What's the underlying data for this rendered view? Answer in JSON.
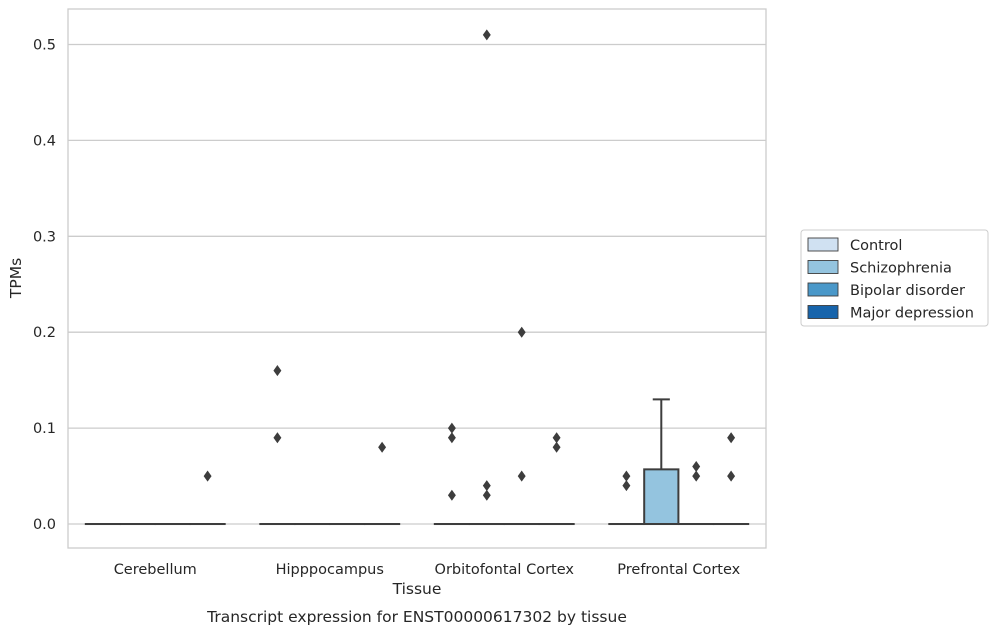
{
  "chart_data": {
    "type": "box",
    "caption": "Transcript expression for ENST00000617302 by tissue",
    "xlabel": "Tissue",
    "ylabel": "TPMs",
    "ylim": [
      -0.025,
      0.537
    ],
    "yticks": [
      "0.0",
      "0.1",
      "0.2",
      "0.3",
      "0.4",
      "0.5"
    ],
    "ytick_values": [
      0.0,
      0.1,
      0.2,
      0.3,
      0.4,
      0.5
    ],
    "categories": [
      "Cerebellum",
      "Hipppocampus",
      "Orbitofontal Cortex",
      "Prefrontal Cortex"
    ],
    "grid": "horizontal",
    "legend_position": "outside right",
    "series": [
      {
        "name": "Control",
        "color": "#d0e1f2",
        "boxes": [
          {
            "category": "Cerebellum",
            "q1": 0.0,
            "median": 0.0,
            "q3": 0.0,
            "whisker_low": 0.0,
            "whisker_high": 0.0,
            "outliers": []
          },
          {
            "category": "Hipppocampus",
            "q1": 0.0,
            "median": 0.0,
            "q3": 0.0,
            "whisker_low": 0.0,
            "whisker_high": 0.0,
            "outliers": [
              0.16,
              0.09
            ]
          },
          {
            "category": "Orbitofontal Cortex",
            "q1": 0.0,
            "median": 0.0,
            "q3": 0.0,
            "whisker_low": 0.0,
            "whisker_high": 0.0,
            "outliers": [
              0.1,
              0.09,
              0.03
            ]
          },
          {
            "category": "Prefrontal Cortex",
            "q1": 0.0,
            "median": 0.0,
            "q3": 0.0,
            "whisker_low": 0.0,
            "whisker_high": 0.0,
            "outliers": [
              0.05,
              0.04
            ]
          }
        ]
      },
      {
        "name": "Schizophrenia",
        "color": "#94c4df",
        "boxes": [
          {
            "category": "Cerebellum",
            "q1": 0.0,
            "median": 0.0,
            "q3": 0.0,
            "whisker_low": 0.0,
            "whisker_high": 0.0,
            "outliers": []
          },
          {
            "category": "Hipppocampus",
            "q1": 0.0,
            "median": 0.0,
            "q3": 0.0,
            "whisker_low": 0.0,
            "whisker_high": 0.0,
            "outliers": []
          },
          {
            "category": "Orbitofontal Cortex",
            "q1": 0.0,
            "median": 0.0,
            "q3": 0.0,
            "whisker_low": 0.0,
            "whisker_high": 0.0,
            "outliers": [
              0.51,
              0.04,
              0.03
            ]
          },
          {
            "category": "Prefrontal Cortex",
            "q1": 0.0,
            "median": 0.0,
            "q3": 0.057,
            "whisker_low": 0.0,
            "whisker_high": 0.13,
            "outliers": []
          }
        ]
      },
      {
        "name": "Bipolar disorder",
        "color": "#4a98c9",
        "boxes": [
          {
            "category": "Cerebellum",
            "q1": 0.0,
            "median": 0.0,
            "q3": 0.0,
            "whisker_low": 0.0,
            "whisker_high": 0.0,
            "outliers": []
          },
          {
            "category": "Hipppocampus",
            "q1": 0.0,
            "median": 0.0,
            "q3": 0.0,
            "whisker_low": 0.0,
            "whisker_high": 0.0,
            "outliers": []
          },
          {
            "category": "Orbitofontal Cortex",
            "q1": 0.0,
            "median": 0.0,
            "q3": 0.0,
            "whisker_low": 0.0,
            "whisker_high": 0.0,
            "outliers": [
              0.2,
              0.05
            ]
          },
          {
            "category": "Prefrontal Cortex",
            "q1": 0.0,
            "median": 0.0,
            "q3": 0.0,
            "whisker_low": 0.0,
            "whisker_high": 0.0,
            "outliers": [
              0.06,
              0.05
            ]
          }
        ]
      },
      {
        "name": "Major depression",
        "color": "#1764ab",
        "boxes": [
          {
            "category": "Cerebellum",
            "q1": 0.0,
            "median": 0.0,
            "q3": 0.0,
            "whisker_low": 0.0,
            "whisker_high": 0.0,
            "outliers": [
              0.05
            ]
          },
          {
            "category": "Hipppocampus",
            "q1": 0.0,
            "median": 0.0,
            "q3": 0.0,
            "whisker_low": 0.0,
            "whisker_high": 0.0,
            "outliers": [
              0.08
            ]
          },
          {
            "category": "Orbitofontal Cortex",
            "q1": 0.0,
            "median": 0.0,
            "q3": 0.0,
            "whisker_low": 0.0,
            "whisker_high": 0.0,
            "outliers": [
              0.09,
              0.08
            ]
          },
          {
            "category": "Prefrontal Cortex",
            "q1": 0.0,
            "median": 0.0,
            "q3": 0.0,
            "whisker_low": 0.0,
            "whisker_high": 0.0,
            "outliers": [
              0.09,
              0.05
            ]
          }
        ]
      }
    ]
  }
}
